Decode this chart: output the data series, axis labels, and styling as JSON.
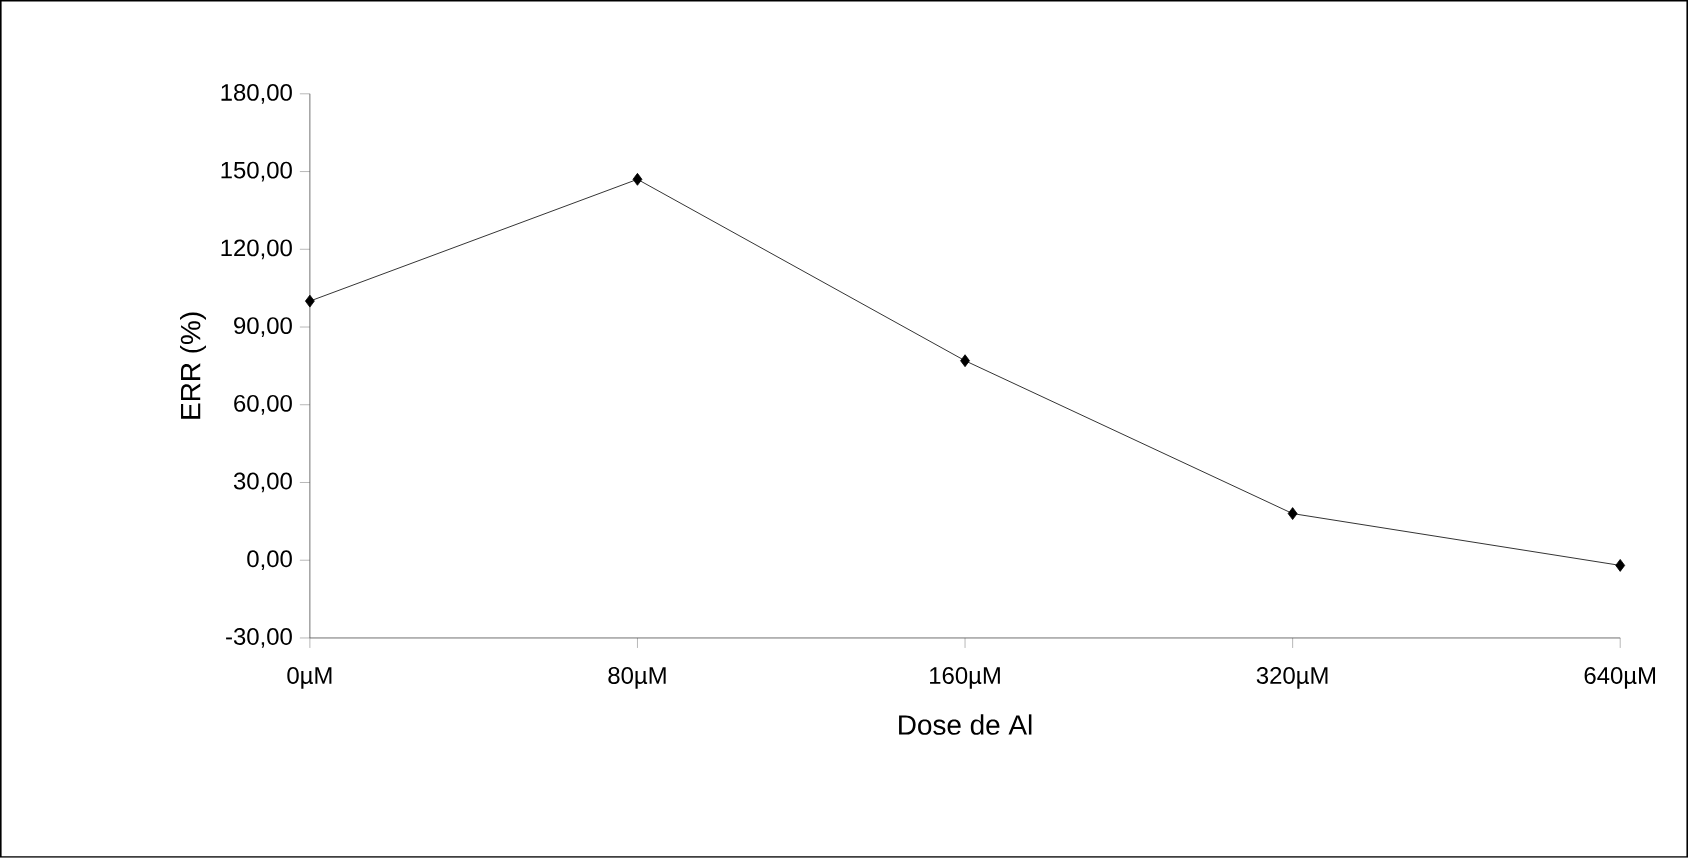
{
  "chart_data": {
    "type": "line",
    "xlabel": "Dose de Al",
    "ylabel": "ERR (%)",
    "categories": [
      "0µM",
      "80µM",
      "160µM",
      "320µM",
      "640µM"
    ],
    "series": [
      {
        "color": "#000000",
        "values": [
          100,
          147,
          77,
          18,
          -2
        ]
      }
    ],
    "ylim": [
      -30,
      180
    ],
    "yticks": [
      {
        "value": -30,
        "label": "-30,00"
      },
      {
        "value": 0,
        "label": "0,00"
      },
      {
        "value": 30,
        "label": "30,00"
      },
      {
        "value": 60,
        "label": "60,00"
      },
      {
        "value": 90,
        "label": "90,00"
      },
      {
        "value": 120,
        "label": "120,00"
      },
      {
        "value": 150,
        "label": "150,00"
      },
      {
        "value": 180,
        "label": "180,00"
      }
    ],
    "grid": false,
    "legend": false,
    "marker": "diamond",
    "line_style": "solid"
  }
}
